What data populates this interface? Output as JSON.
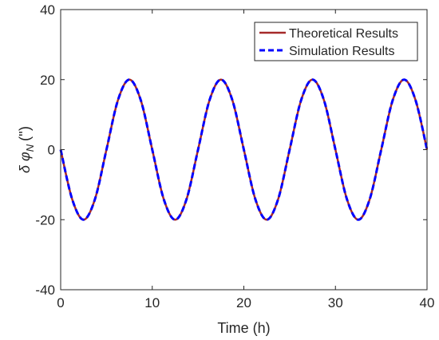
{
  "chart_data": {
    "type": "line",
    "title": "",
    "xlabel": "Time (h)",
    "ylabel": "δ φ",
    "ylabel_subscript": "N",
    "ylabel_unit": "('')",
    "xlim": [
      0,
      40
    ],
    "ylim": [
      -40,
      40
    ],
    "xticks": [
      0,
      10,
      20,
      30,
      40
    ],
    "yticks": [
      -40,
      -20,
      0,
      20,
      40
    ],
    "xtick_labels": [
      "0",
      "10",
      "20",
      "30",
      "40"
    ],
    "ytick_labels": [
      "-40",
      "-20",
      "0",
      "20",
      "40"
    ],
    "grid": false,
    "legend_position": "top-right",
    "series": [
      {
        "name": "Theoretical Results",
        "color": "#a52a2a",
        "style": "solid",
        "x": [
          0,
          1.25,
          2.5,
          3.75,
          5,
          6.25,
          7.5,
          8.75,
          10,
          11.25,
          12.5,
          13.75,
          15,
          16.25,
          17.5,
          18.75,
          20,
          21.25,
          22.5,
          23.75,
          25,
          26.25,
          27.5,
          28.75,
          30,
          31.25,
          32.5,
          33.75,
          35,
          36.25,
          37.5,
          38.75,
          40
        ],
        "y": [
          0,
          -14.1,
          -20,
          -14.1,
          0,
          14.1,
          20,
          14.1,
          0,
          -14.1,
          -20,
          -14.1,
          0,
          14.1,
          20,
          14.1,
          0,
          -14.1,
          -20,
          -14.1,
          0,
          14.1,
          20,
          14.1,
          0,
          -14.1,
          -20,
          -14.1,
          0,
          14.1,
          20,
          14.1,
          0
        ]
      },
      {
        "name": "Simulation Results",
        "color": "#0000ff",
        "style": "dashed",
        "x": [
          0,
          1.25,
          2.5,
          3.75,
          5,
          6.25,
          7.5,
          8.75,
          10,
          11.25,
          12.5,
          13.75,
          15,
          16.25,
          17.5,
          18.75,
          20,
          21.25,
          22.5,
          23.75,
          25,
          26.25,
          27.5,
          28.75,
          30,
          31.25,
          32.5,
          33.75,
          35,
          36.25,
          37.5,
          38.75,
          40
        ],
        "y": [
          0,
          -14.1,
          -20,
          -14.1,
          0,
          14.1,
          20,
          14.1,
          0,
          -14.1,
          -20,
          -14.1,
          0,
          14.1,
          20,
          14.1,
          0,
          -14.1,
          -20,
          -14.1,
          0,
          14.1,
          20,
          14.1,
          0,
          -14.1,
          -20,
          -14.1,
          0,
          14.1,
          20,
          14.1,
          0
        ]
      }
    ]
  }
}
